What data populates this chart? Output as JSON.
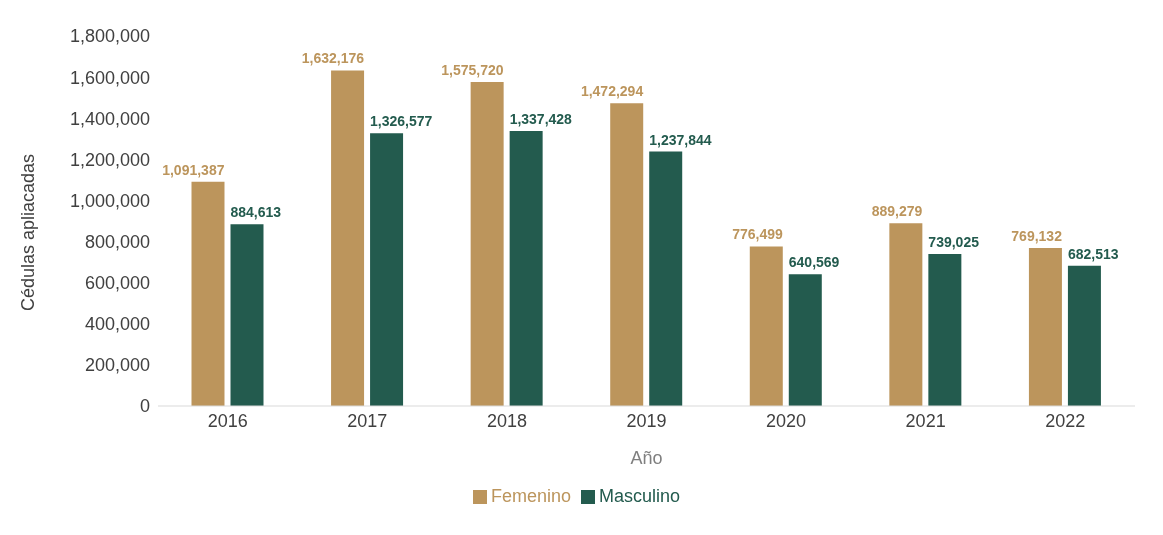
{
  "chart_data": {
    "type": "bar",
    "xlabel": "Año",
    "ylabel": "Cédulas apliacadas",
    "categories": [
      "2016",
      "2017",
      "2018",
      "2019",
      "2020",
      "2021",
      "2022"
    ],
    "series": [
      {
        "name": "Femenino",
        "color": "#bc955c",
        "values": [
          1091387,
          1632176,
          1575720,
          1472294,
          776499,
          889279,
          769132
        ],
        "value_labels": [
          "1,091,387",
          "1,632,176",
          "1,575,720",
          "1,472,294",
          "776,499",
          "889,279",
          "769,132"
        ]
      },
      {
        "name": "Masculino",
        "color": "#235b4e",
        "values": [
          884613,
          1326577,
          1337428,
          1237844,
          640569,
          739025,
          682513
        ],
        "value_labels": [
          "884,613",
          "1,326,577",
          "1,337,428",
          "1,237,844",
          "640,569",
          "739,025",
          "682,513"
        ]
      }
    ],
    "ylim": [
      0,
      1800000
    ],
    "yticks": [
      {
        "value": 0,
        "label": "0"
      },
      {
        "value": 200000,
        "label": "200,000"
      },
      {
        "value": 400000,
        "label": "400,000"
      },
      {
        "value": 600000,
        "label": "600,000"
      },
      {
        "value": 800000,
        "label": "800,000"
      },
      {
        "value": 1000000,
        "label": "1,000,000"
      },
      {
        "value": 1200000,
        "label": "1,200,000"
      },
      {
        "value": 1400000,
        "label": "1,400,000"
      },
      {
        "value": 1600000,
        "label": "1,600,000"
      },
      {
        "value": 1800000,
        "label": "1,800,000"
      }
    ],
    "grid": false,
    "legend": "bottom"
  }
}
